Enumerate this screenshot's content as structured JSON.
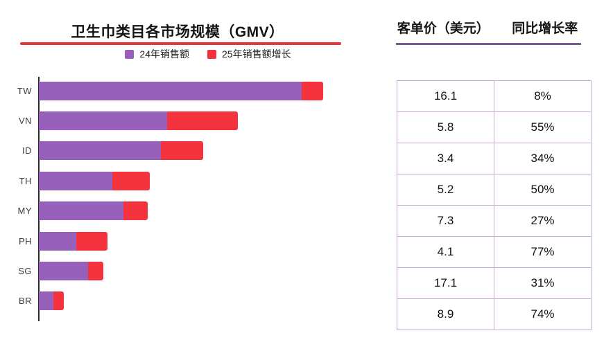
{
  "left_chart": {
    "title": "卫生巾类目各市场规模（GMV）",
    "legend": [
      {
        "label": "24年销售额",
        "color": "#9760bb",
        "icon": "purple-square-swatch"
      },
      {
        "label": "25年销售额增长",
        "color": "#f4333f",
        "icon": "red-square-swatch"
      }
    ],
    "title_underline_color": "#ea353d"
  },
  "right_table": {
    "header_col1": "客单价（美元）",
    "header_col2": "同比增长率",
    "header_underline_color": "#7a5a8a",
    "border_color": "#c9a8d4"
  },
  "colors": {
    "bar_purple": "#9760bb",
    "bar_red": "#f4333f",
    "axis": "#2b2b2b",
    "red_rule": "#ea353d",
    "purple_rule": "#7a5a8a"
  },
  "chart_data": [
    {
      "type": "bar",
      "orientation": "horizontal",
      "stacked": true,
      "title": "卫生巾类目各市场规模（GMV）",
      "categories": [
        "TW",
        "VN",
        "ID",
        "TH",
        "MY",
        "PH",
        "SG",
        "BR"
      ],
      "series": [
        {
          "name": "24年销售额",
          "color": "#9760bb",
          "values": [
            379,
            185,
            176,
            106,
            122,
            54,
            71,
            21
          ]
        },
        {
          "name": "25年销售额增长",
          "color": "#f4333f",
          "values": [
            31,
            102,
            61,
            54,
            35,
            45,
            22,
            15
          ]
        }
      ],
      "units": "relative units (x-axis unlabeled; values proportional to bar length in px)",
      "xlabel": "",
      "ylabel": "",
      "legend_position": "top",
      "grid": false
    },
    {
      "type": "table",
      "columns": [
        "客单价（美元）",
        "同比增长率"
      ],
      "rows": [
        [
          "16.1",
          "8%"
        ],
        [
          "5.8",
          "55%"
        ],
        [
          "3.4",
          "34%"
        ],
        [
          "5.2",
          "50%"
        ],
        [
          "7.3",
          "27%"
        ],
        [
          "4.1",
          "77%"
        ],
        [
          "17.1",
          "31%"
        ],
        [
          "8.9",
          "74%"
        ]
      ]
    }
  ]
}
